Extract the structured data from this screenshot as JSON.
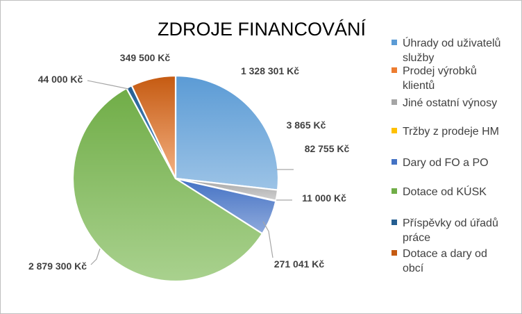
{
  "chart_data": {
    "type": "pie",
    "title": "ZDROJE FINANCOVÁNÍ",
    "legend_position": "right",
    "slices": [
      {
        "name": "Úhrady od uživatelů služby",
        "legend_lines": [
          "Úhrady od uživatelů",
          "služby"
        ],
        "value": 1328301,
        "label": "1 328 301 Kč",
        "color_light": "#9cc3e6",
        "color_dark": "#5b9bd5"
      },
      {
        "name": "Jiné ostatní výnosy",
        "legend_lines": [
          "Jiné ostatní výnosy"
        ],
        "value": 82755,
        "label": "82 755 Kč",
        "color_light": "#d0d0d0",
        "color_dark": "#a5a5a5"
      },
      {
        "name": "Tržby z prodeje HM",
        "legend_lines": [
          "Tržby z prodeje HM"
        ],
        "value": 3865,
        "label": "3 865 Kč",
        "color_light": "#ffd966",
        "color_dark": "#ffc000"
      },
      {
        "name": "Dary od FO a PO",
        "legend_lines": [
          "Dary od FO a PO"
        ],
        "value": 271041,
        "label": "271 041 Kč",
        "color_light": "#8faadc",
        "color_dark": "#4472c4"
      },
      {
        "name": "Dotace od KÚSK",
        "legend_lines": [
          "Dotace od KÚSK"
        ],
        "value": 2879300,
        "label": "2 879 300 Kč",
        "color_light": "#a9d18e",
        "color_dark": "#70ad47"
      },
      {
        "name": "Příspěvky od úřadů práce",
        "legend_lines": [
          "Příspěvky od úřadů",
          "práce"
        ],
        "value": 44000,
        "label": "44 000 Kč",
        "color_light": "#5b9bd5",
        "color_dark": "#255e91"
      },
      {
        "name": "Dotace a dary od obcí",
        "legend_lines": [
          "Dotace a dary od",
          "obcí"
        ],
        "value": 349500,
        "label": "349 500 Kč",
        "color_light": "#f4b183",
        "color_dark": "#c55a11"
      }
    ],
    "unlabeled_pie_slice": {
      "name": "Prodej výrobků klientů",
      "legend_lines": [
        "Prodej výrobků",
        "klientů"
      ],
      "value": 11000,
      "label": "11 000 Kč",
      "color_light": "#f4b183",
      "color_dark": "#ed7d31"
    },
    "legend_order": [
      "Úhrady od uživatelů služby",
      "Prodej výrobků klientů",
      "Jiné ostatní výnosy",
      "Tržby z prodeje HM",
      "Dary od FO a PO",
      "Dotace od KÚSK",
      "Příspěvky od úřadů práce",
      "Dotace a dary od obcí"
    ]
  }
}
